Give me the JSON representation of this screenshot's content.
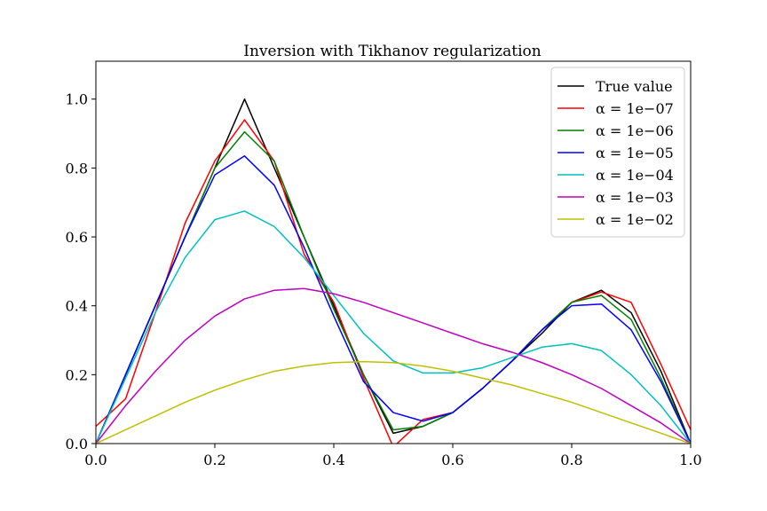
{
  "chart_data": {
    "type": "line",
    "title": "Inversion with Tikhanov regularization",
    "xlabel": "",
    "ylabel": "",
    "xlim": [
      0.0,
      1.0
    ],
    "ylim": [
      0.0,
      1.11
    ],
    "xticks": [
      "0.0",
      "0.2",
      "0.4",
      "0.6",
      "0.8",
      "1.0"
    ],
    "yticks": [
      "0.0",
      "0.2",
      "0.4",
      "0.6",
      "0.8",
      "1.0"
    ],
    "legend_position": "top-right",
    "grid": false,
    "x": [
      0.0,
      0.05,
      0.1,
      0.15,
      0.2,
      0.25,
      0.3,
      0.35,
      0.4,
      0.45,
      0.5,
      0.55,
      0.6,
      0.65,
      0.7,
      0.75,
      0.8,
      0.85,
      0.9,
      0.95,
      1.0
    ],
    "series": [
      {
        "name": "True value",
        "color": "#000000",
        "values": [
          0.0,
          0.2,
          0.4,
          0.6,
          0.8,
          1.0,
          0.8,
          0.6,
          0.4,
          0.2,
          0.03,
          0.05,
          0.09,
          0.16,
          0.24,
          0.32,
          0.41,
          0.445,
          0.38,
          0.21,
          0.0
        ]
      },
      {
        "name": "α = 1e−07",
        "color": "#ff0000",
        "values": [
          0.05,
          0.13,
          0.38,
          0.64,
          0.82,
          0.94,
          0.82,
          0.55,
          0.41,
          0.19,
          -0.01,
          0.07,
          0.09,
          0.16,
          0.24,
          0.33,
          0.41,
          0.44,
          0.41,
          0.23,
          0.04
        ]
      },
      {
        "name": "α = 1e−06",
        "color": "#008000",
        "values": [
          0.0,
          0.2,
          0.4,
          0.6,
          0.8,
          0.905,
          0.82,
          0.6,
          0.39,
          0.2,
          0.04,
          0.05,
          0.09,
          0.16,
          0.24,
          0.33,
          0.41,
          0.43,
          0.36,
          0.19,
          0.0
        ]
      },
      {
        "name": "α = 1e−05",
        "color": "#0000ff",
        "values": [
          0.0,
          0.2,
          0.4,
          0.6,
          0.78,
          0.835,
          0.75,
          0.57,
          0.37,
          0.18,
          0.09,
          0.065,
          0.09,
          0.16,
          0.24,
          0.33,
          0.4,
          0.405,
          0.33,
          0.18,
          0.0
        ]
      },
      {
        "name": "α = 1e−04",
        "color": "#00bfbf",
        "values": [
          0.0,
          0.19,
          0.38,
          0.54,
          0.65,
          0.675,
          0.63,
          0.54,
          0.43,
          0.32,
          0.24,
          0.205,
          0.205,
          0.22,
          0.25,
          0.28,
          0.29,
          0.27,
          0.2,
          0.11,
          0.0
        ]
      },
      {
        "name": "α = 1e−03",
        "color": "#bf00bf",
        "values": [
          0.0,
          0.11,
          0.21,
          0.3,
          0.37,
          0.42,
          0.445,
          0.45,
          0.435,
          0.41,
          0.38,
          0.35,
          0.32,
          0.29,
          0.265,
          0.235,
          0.2,
          0.16,
          0.11,
          0.06,
          0.0
        ]
      },
      {
        "name": "α = 1e−02",
        "color": "#bfbf00",
        "values": [
          0.0,
          0.04,
          0.08,
          0.12,
          0.155,
          0.185,
          0.21,
          0.225,
          0.235,
          0.238,
          0.235,
          0.225,
          0.21,
          0.19,
          0.17,
          0.145,
          0.12,
          0.09,
          0.06,
          0.03,
          0.0
        ]
      }
    ]
  }
}
